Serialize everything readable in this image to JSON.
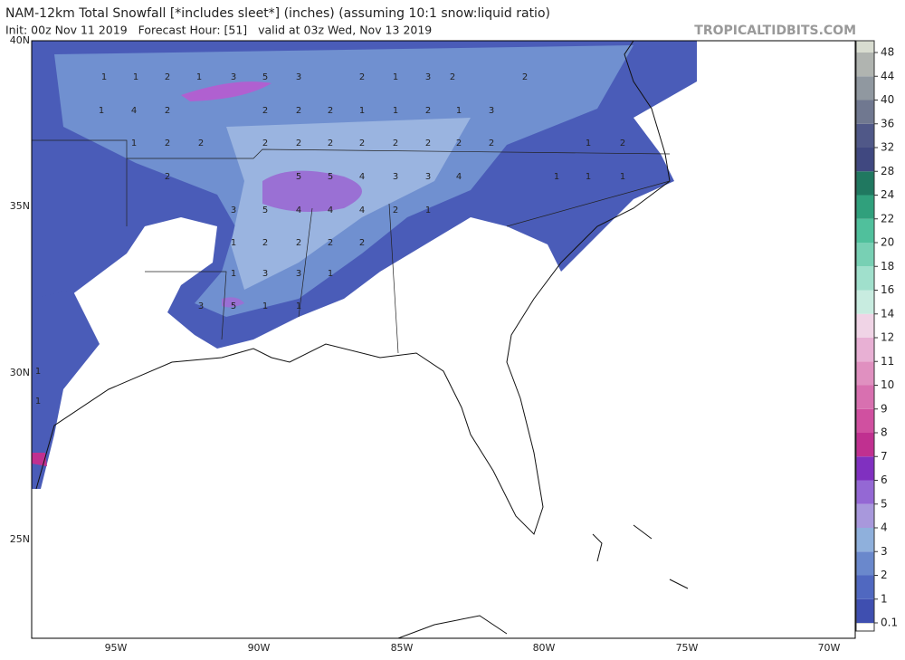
{
  "header": {
    "title": "NAM-12km Total Snowfall [*includes sleet*] (inches) (assuming 10:1 snow:liquid ratio)",
    "subtitle": "Init: 00z Nov 11 2019   Forecast Hour: [51]   valid at 03z Wed, Nov 13 2019",
    "site": "TROPICALTIDBITS.COM"
  },
  "map": {
    "lat_labels": [
      "40N",
      "35N",
      "30N",
      "25N"
    ],
    "lon_labels": [
      "95W",
      "90W",
      "85W",
      "80W",
      "75W",
      "70W"
    ],
    "labels": [
      "1",
      "1",
      "2",
      "1",
      "3",
      "5",
      "3",
      "2",
      "1",
      "3",
      "2",
      "2",
      "1",
      "4",
      "2",
      "2",
      "2",
      "2",
      "1",
      "1",
      "2",
      "1",
      "3",
      "1",
      "2",
      "2",
      "2",
      "2",
      "2",
      "2",
      "2",
      "2",
      "2",
      "2",
      "1",
      "2",
      "2",
      "5",
      "5",
      "4",
      "3",
      "3",
      "4",
      "1",
      "1",
      "1",
      "3",
      "5",
      "4",
      "4",
      "4",
      "2",
      "1",
      "1",
      "2",
      "2",
      "2",
      "2",
      "1",
      "3",
      "3",
      "1",
      "3",
      "5",
      "1",
      "1",
      "1",
      "1"
    ]
  },
  "colorbar": {
    "ticks": [
      0.1,
      1,
      2,
      3,
      4,
      5,
      6,
      7,
      8,
      9,
      10,
      11,
      12,
      14,
      16,
      18,
      20,
      22,
      24,
      28,
      32,
      36,
      40,
      44,
      48
    ],
    "colors": [
      "#3f4fb0",
      "#5068c0",
      "#6a88cc",
      "#8fb0dc",
      "#a898dc",
      "#9468d4",
      "#8030c0",
      "#c03090",
      "#d050a0",
      "#d870b0",
      "#e090c0",
      "#e8b0d4",
      "#f0d4e6",
      "#c8ece0",
      "#a0e0cc",
      "#78d0b4",
      "#50c09c",
      "#30a07c",
      "#207860",
      "#404880",
      "#505888",
      "#707890",
      "#9098a0",
      "#b0b4b0",
      "#d8dcd0"
    ]
  }
}
